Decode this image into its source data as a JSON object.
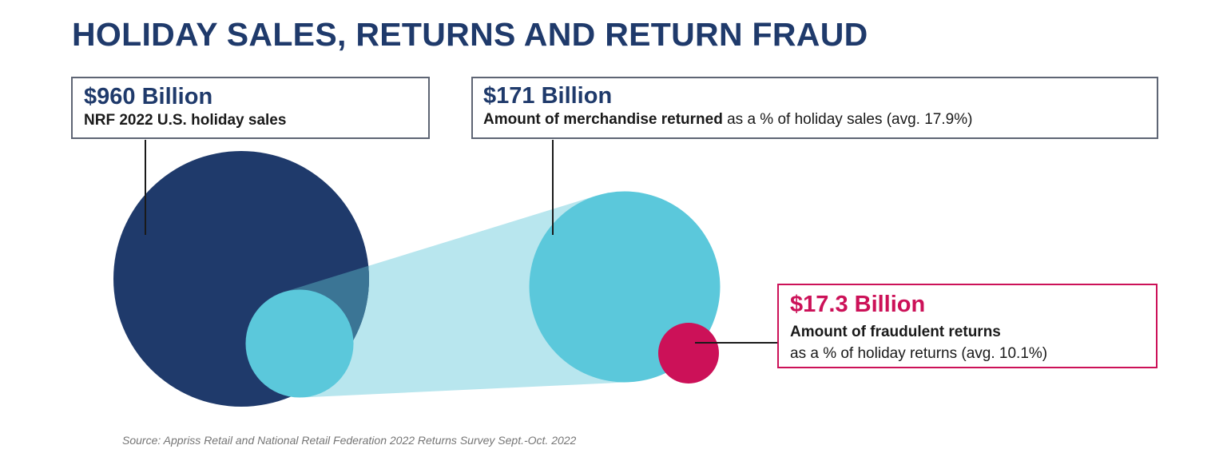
{
  "chart_data": {
    "type": "bubble",
    "title": "HOLIDAY SALES, RETURNS AND RETURN FRAUD",
    "source": "Source: Appriss Retail and National Retail Federation 2022 Returns Survey Sept.-Oct. 2022",
    "unit": "billion USD",
    "series": [
      {
        "value": 960,
        "value_label": "$960 Billion",
        "description": "NRF 2022 U.S. holiday sales",
        "color": "#1f3a6b"
      },
      {
        "value": 171,
        "value_label": "$171 Billion",
        "description_bold": "Amount of merchandise returned",
        "description_rest": " as a % of holiday sales (avg. 17.9%)",
        "color": "#5bc8db"
      },
      {
        "value": 17.3,
        "value_label": "$17.3 Billion",
        "description_bold": "Amount of fraudulent returns",
        "description_rest": "as a % of holiday returns (avg. 10.1%)",
        "color": "#cc1158"
      }
    ],
    "colors": {
      "title": "#1f3a6b",
      "zoom_cone": "#b8e6ee",
      "overlap": "#3b7595",
      "callout_border": "#5e6574",
      "fraud_border": "#cc1158",
      "leader_line": "#1a1a1a",
      "source_text": "#757575"
    }
  }
}
